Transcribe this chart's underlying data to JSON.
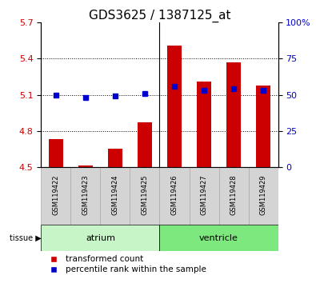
{
  "title": "GDS3625 / 1387125_at",
  "samples": [
    "GSM119422",
    "GSM119423",
    "GSM119424",
    "GSM119425",
    "GSM119426",
    "GSM119427",
    "GSM119428",
    "GSM119429"
  ],
  "transformed_count": [
    4.73,
    4.51,
    4.65,
    4.87,
    5.51,
    5.21,
    5.37,
    5.18
  ],
  "percentile_rank": [
    50,
    48,
    49,
    51,
    56,
    53,
    54,
    53
  ],
  "ylim_left": [
    4.5,
    5.7
  ],
  "ylim_right": [
    0,
    100
  ],
  "yticks_left": [
    4.5,
    4.8,
    5.1,
    5.4,
    5.7
  ],
  "yticks_right": [
    0,
    25,
    50,
    75,
    100
  ],
  "groups": [
    {
      "label": "atrium",
      "indices": [
        0,
        1,
        2,
        3
      ],
      "color": "#c8f5c8"
    },
    {
      "label": "ventricle",
      "indices": [
        4,
        5,
        6,
        7
      ],
      "color": "#7de87d"
    }
  ],
  "bar_color": "#cc0000",
  "dot_color": "#0000cc",
  "bar_bottom": 4.5,
  "right_axis_color": "#0000cc",
  "left_axis_color": "#cc0000",
  "sample_box_color": "#d4d4d4",
  "title_fontsize": 11,
  "tick_fontsize": 8,
  "sample_fontsize": 6,
  "group_fontsize": 8,
  "legend_fontsize": 7.5
}
